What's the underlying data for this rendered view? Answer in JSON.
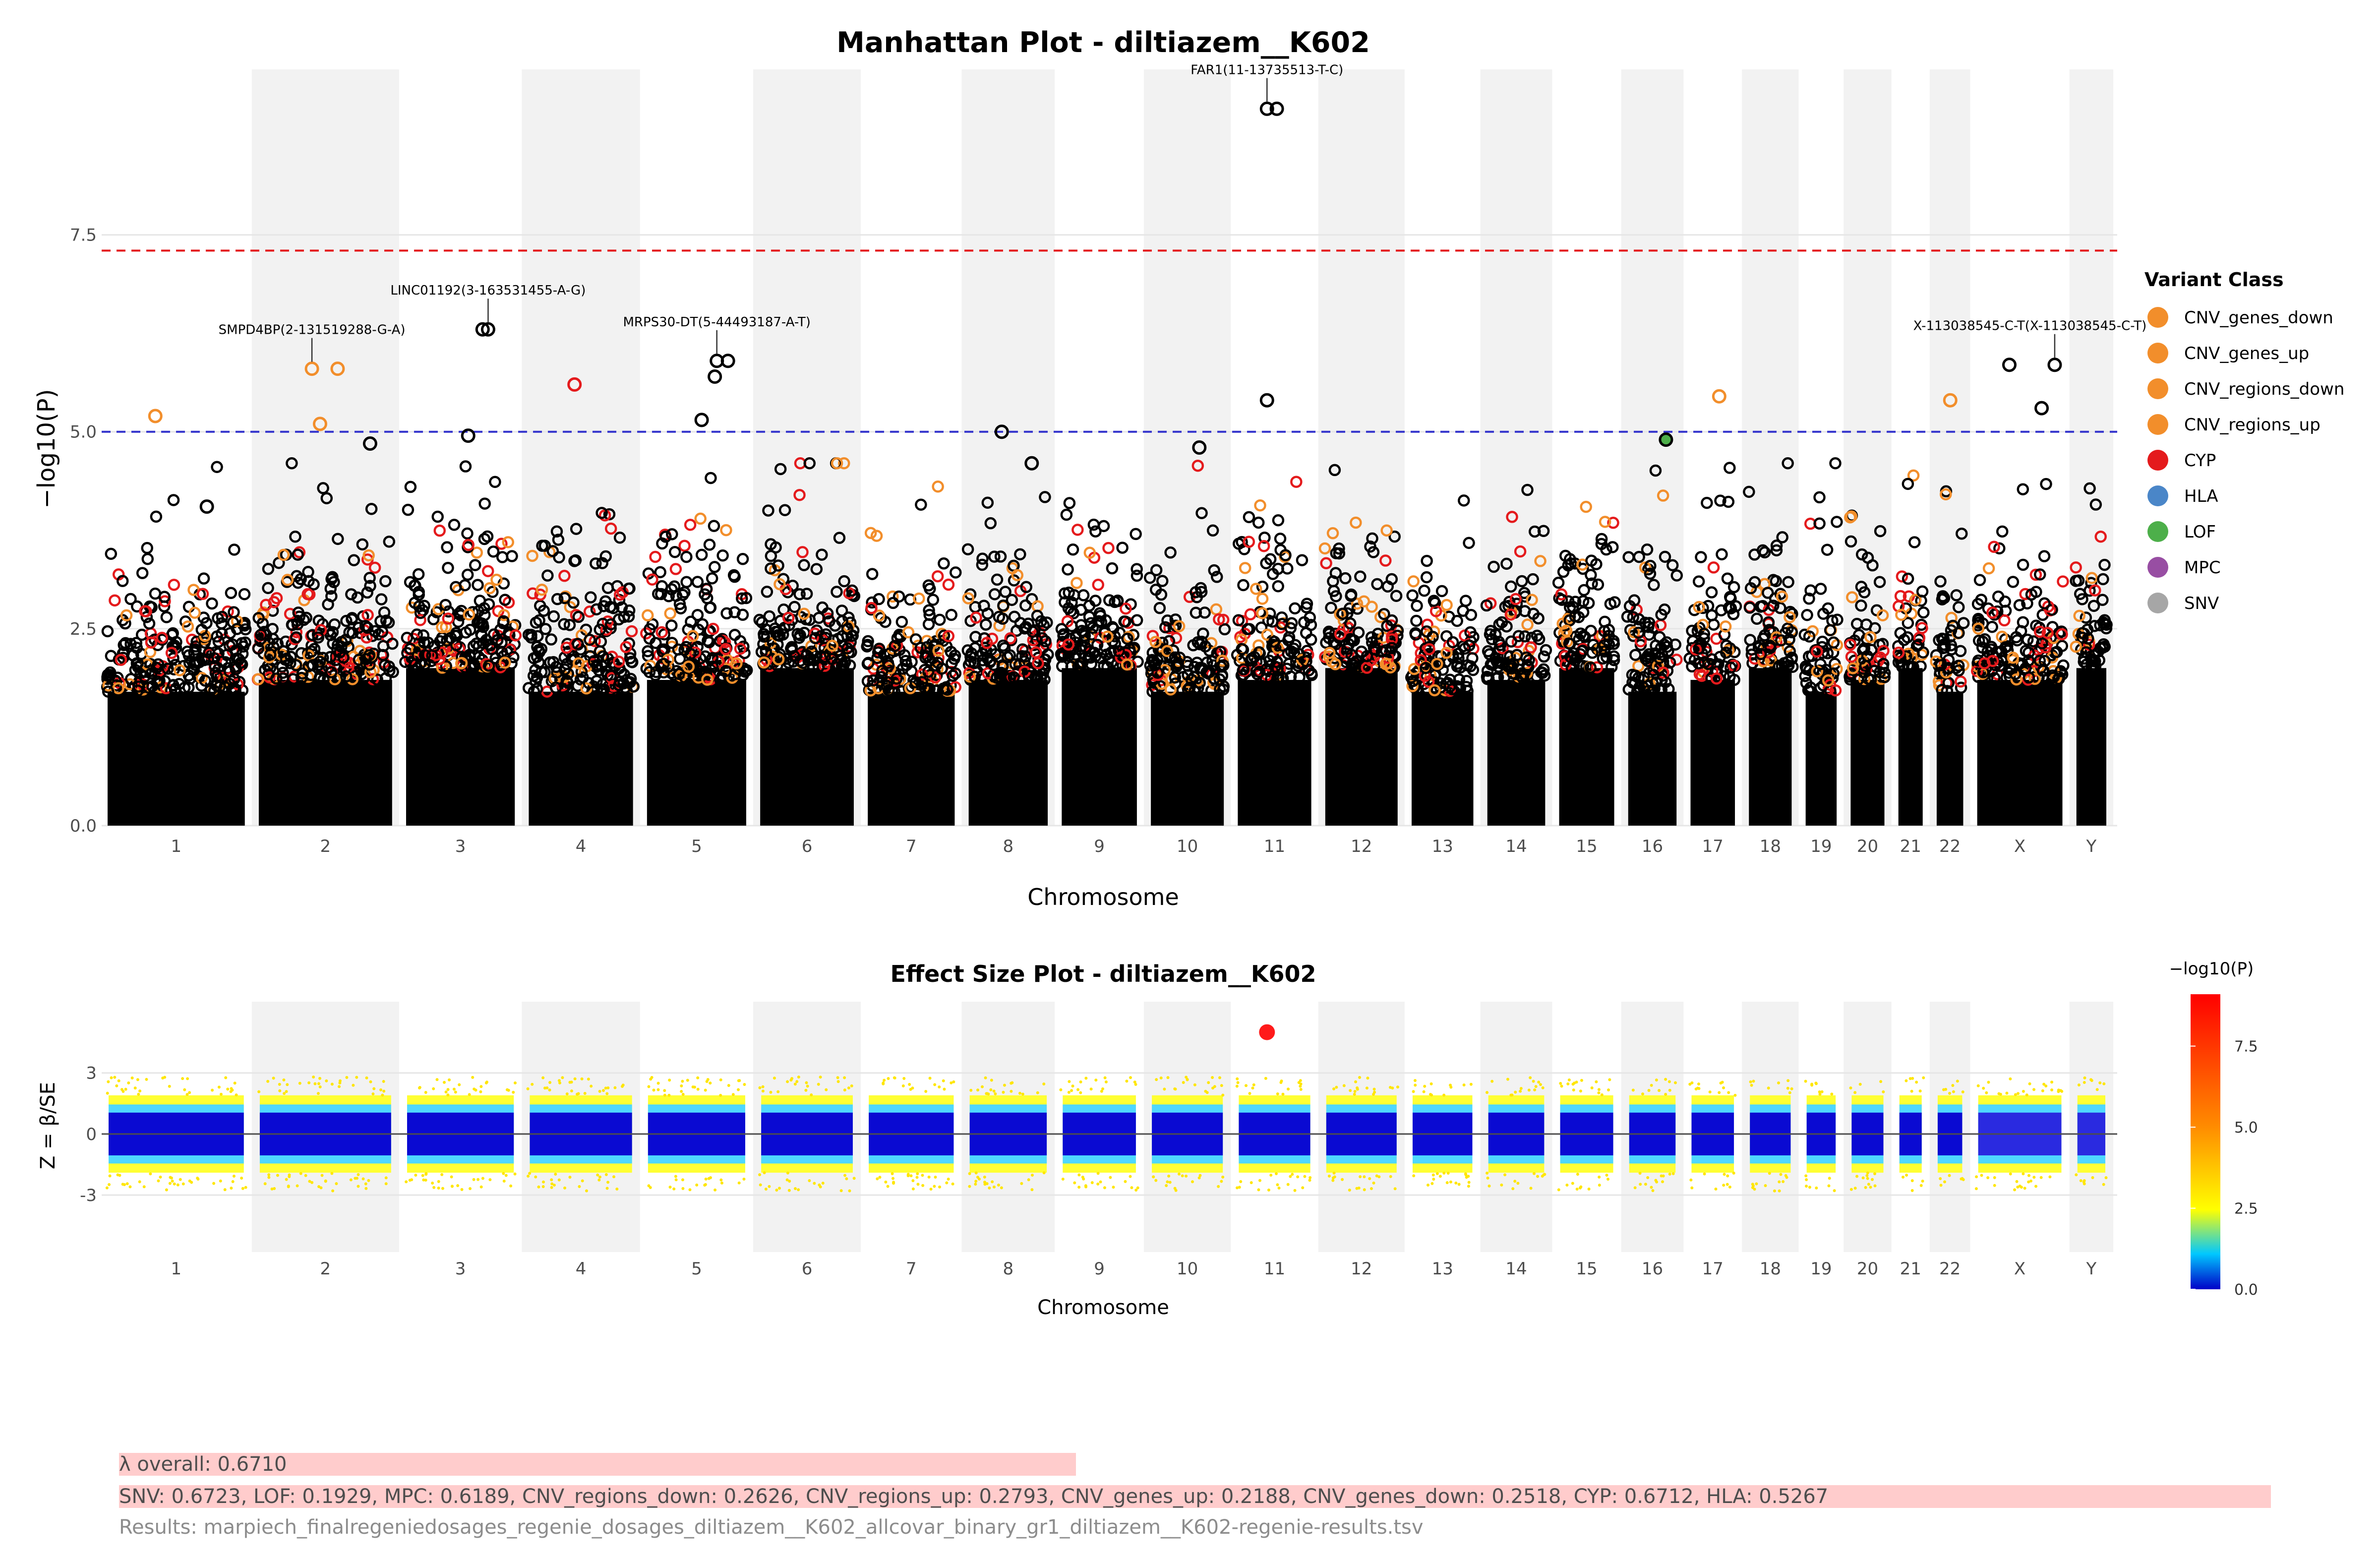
{
  "chart_data": [
    {
      "type": "scatter",
      "title": "Manhattan Plot - diltiazem__K602",
      "xlabel": "Chromosome",
      "ylabel": "−log10(P)",
      "ylim": [
        0,
        9.6
      ],
      "yticks": [
        "0.0",
        "2.5",
        "5.0",
        "7.5"
      ],
      "thresholds": [
        {
          "name": "genome-wide",
          "value": 7.3,
          "color": "#e41a1c",
          "style": "dashed"
        },
        {
          "name": "suggestive",
          "value": 5.0,
          "color": "#3333cc",
          "style": "dashed"
        }
      ],
      "chromosomes": [
        "1",
        "2",
        "3",
        "4",
        "5",
        "6",
        "7",
        "8",
        "9",
        "10",
        "11",
        "12",
        "13",
        "14",
        "15",
        "16",
        "17",
        "18",
        "19",
        "20",
        "21",
        "22",
        "X",
        "Y"
      ],
      "legend": {
        "title": "Variant Class",
        "position": "right",
        "entries": [
          {
            "name": "CNV_genes_down",
            "color": "#f28e2b"
          },
          {
            "name": "CNV_genes_up",
            "color": "#f28e2b"
          },
          {
            "name": "CNV_regions_down",
            "color": "#f28e2b"
          },
          {
            "name": "CNV_regions_up",
            "color": "#f28e2b"
          },
          {
            "name": "CYP",
            "color": "#e41a1c"
          },
          {
            "name": "HLA",
            "color": "#4a86c8"
          },
          {
            "name": "LOF",
            "color": "#4daf4a"
          },
          {
            "name": "MPC",
            "color": "#984ea3"
          },
          {
            "name": "SNV",
            "color": "#a6a6a6"
          }
        ]
      },
      "annotations": [
        {
          "label": "FAR1(11-13735513-T-C)",
          "chrom": "11",
          "y": 9.1
        },
        {
          "label": "LINC01192(3-163531455-A-G)",
          "chrom": "3",
          "y": 6.3
        },
        {
          "label": "SMPD4BP(2-131519288-G-A)",
          "chrom": "2",
          "y": 5.8
        },
        {
          "label": "MRPS30-DT(5-44493187-A-T)",
          "chrom": "5",
          "y": 5.9
        },
        {
          "label": "X-113038545-C-T(X-113038545-C-T)",
          "chrom": "X",
          "y": 5.85
        }
      ],
      "top_points": [
        {
          "chrom": "1",
          "y": 5.2,
          "class": "CNV_regions_up"
        },
        {
          "chrom": "1",
          "y": 4.05,
          "class": "SNV"
        },
        {
          "chrom": "2",
          "y": 5.8,
          "class": "CNV_genes_up"
        },
        {
          "chrom": "2",
          "y": 5.1,
          "class": "CNV_genes_down"
        },
        {
          "chrom": "2",
          "y": 4.85,
          "class": "SNV"
        },
        {
          "chrom": "3",
          "y": 6.3,
          "class": "SNV"
        },
        {
          "chrom": "3",
          "y": 4.95,
          "class": "SNV"
        },
        {
          "chrom": "4",
          "y": 5.6,
          "class": "CYP"
        },
        {
          "chrom": "5",
          "y": 5.9,
          "class": "SNV"
        },
        {
          "chrom": "5",
          "y": 5.7,
          "class": "SNV"
        },
        {
          "chrom": "5",
          "y": 5.15,
          "class": "SNV"
        },
        {
          "chrom": "8",
          "y": 5.0,
          "class": "SNV"
        },
        {
          "chrom": "8",
          "y": 4.6,
          "class": "SNV"
        },
        {
          "chrom": "10",
          "y": 4.8,
          "class": "SNV"
        },
        {
          "chrom": "11",
          "y": 9.1,
          "class": "SNV"
        },
        {
          "chrom": "11",
          "y": 5.4,
          "class": "SNV"
        },
        {
          "chrom": "16",
          "y": 4.9,
          "class": "LOF"
        },
        {
          "chrom": "17",
          "y": 5.45,
          "class": "CNV_regions_down"
        },
        {
          "chrom": "22",
          "y": 5.4,
          "class": "CNV_regions_up"
        },
        {
          "chrom": "X",
          "y": 5.85,
          "class": "SNV"
        },
        {
          "chrom": "X",
          "y": 5.3,
          "class": "SNV"
        }
      ]
    },
    {
      "type": "scatter",
      "title": "Effect Size Plot - diltiazem__K602",
      "xlabel": "Chromosome",
      "ylabel": "Z = β/SE",
      "ylim": [
        -5.8,
        6.5
      ],
      "yticks": [
        "-3",
        "0",
        "3"
      ],
      "chromosomes": [
        "1",
        "2",
        "3",
        "4",
        "5",
        "6",
        "7",
        "8",
        "9",
        "10",
        "11",
        "12",
        "13",
        "14",
        "15",
        "16",
        "17",
        "18",
        "19",
        "20",
        "21",
        "22",
        "X",
        "Y"
      ],
      "colorbar": {
        "title": "−log10(P)",
        "range": [
          0,
          9.1
        ],
        "ticks": [
          "0.0",
          "2.5",
          "5.0",
          "7.5"
        ],
        "colors": [
          "#0000c8",
          "#00c8ff",
          "#ffff00",
          "#ff8c00",
          "#ff0000"
        ]
      },
      "top_points": [
        {
          "chrom": "11",
          "z": 5.0,
          "neglogp": 9.1
        }
      ]
    }
  ],
  "footer": {
    "lambda_overall": "λ overall: 0.6710",
    "lambda_classes": "SNV: 0.6723, LOF: 0.1929, MPC: 0.6189, CNV_regions_down: 0.2626, CNV_regions_up: 0.2793, CNV_genes_up: 0.2188, CNV_genes_down: 0.2518, CYP: 0.6712, HLA: 0.5267",
    "results_file": "Results: marpiech_finalregeniedosages_regenie_dosages_diltiazem__K602_allcovar_binary_gr1_diltiazem__K602-regenie-results.tsv"
  }
}
